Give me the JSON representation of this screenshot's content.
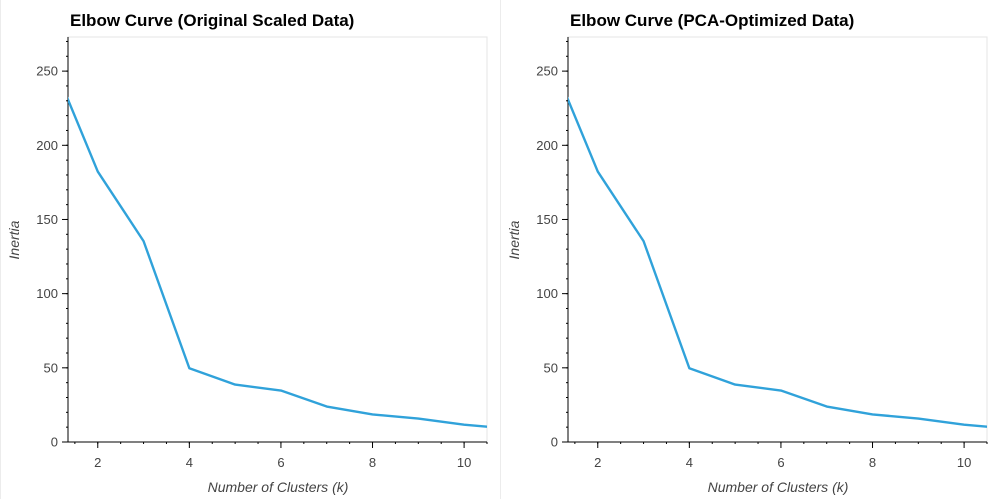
{
  "chart_data": [
    {
      "type": "line",
      "title": "Elbow Curve (Original Scaled Data)",
      "xlabel": "Number of Clusters (k)",
      "ylabel": "Inertia",
      "xlim": [
        1.35,
        10.5
      ],
      "ylim": [
        0,
        273
      ],
      "x_ticks": [
        2,
        4,
        6,
        8,
        10
      ],
      "y_ticks": [
        0,
        50,
        100,
        150,
        200,
        250
      ],
      "grid": false,
      "line_color": "#30a2da",
      "series": [
        {
          "x": [
            1,
            2,
            3,
            4,
            5,
            6,
            7,
            8,
            9,
            10,
            11
          ],
          "values": [
            256.9,
            182.3,
            135.4,
            49.7,
            38.7,
            34.7,
            23.9,
            18.6,
            15.8,
            11.7,
            9.0
          ]
        }
      ]
    },
    {
      "type": "line",
      "title": "Elbow Curve (PCA-Optimized Data)",
      "xlabel": "Number of Clusters (k)",
      "ylabel": "Inertia",
      "xlim": [
        1.35,
        10.5
      ],
      "ylim": [
        0,
        273
      ],
      "x_ticks": [
        2,
        4,
        6,
        8,
        10
      ],
      "y_ticks": [
        0,
        50,
        100,
        150,
        200,
        250
      ],
      "grid": false,
      "line_color": "#30a2da",
      "series": [
        {
          "x": [
            1,
            2,
            3,
            4,
            5,
            6,
            7,
            8,
            9,
            10,
            11
          ],
          "values": [
            256.9,
            182.3,
            135.4,
            49.7,
            38.7,
            34.7,
            23.9,
            18.6,
            15.8,
            11.7,
            9.0
          ]
        }
      ]
    }
  ]
}
